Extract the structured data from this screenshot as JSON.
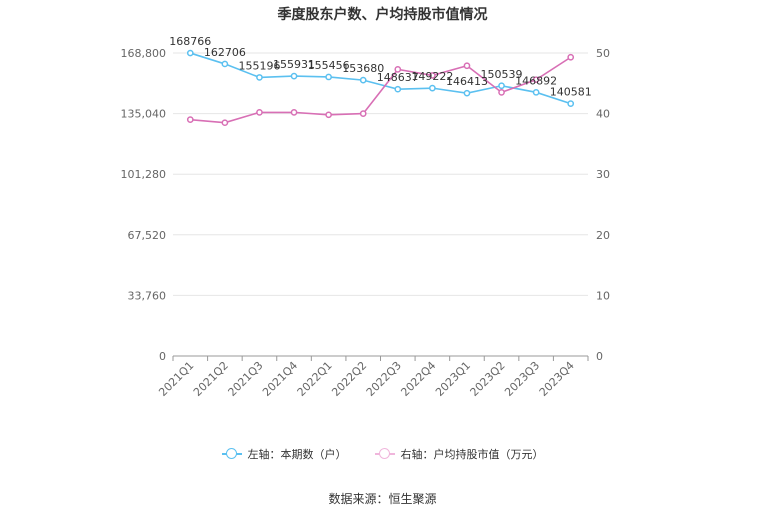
{
  "chart_data": {
    "type": "line",
    "title": "季度股东户数、户均持股市值情况",
    "categories": [
      "2021Q1",
      "2021Q2",
      "2021Q3",
      "2021Q4",
      "2022Q1",
      "2022Q2",
      "2022Q3",
      "2022Q4",
      "2023Q1",
      "2023Q2",
      "2023Q3",
      "2023Q4"
    ],
    "series": [
      {
        "name": "左轴：本期数（户）",
        "axis": "left",
        "color": "#5bc0f0",
        "values": [
          168766,
          162706,
          155196,
          155931,
          155456,
          153680,
          148637,
          149222,
          146413,
          150539,
          146892,
          140581
        ],
        "data_labels": [
          "168766",
          "162706",
          "155196",
          "155931",
          "155456",
          "153680",
          "148637",
          "149222",
          "146413",
          "150539",
          "146892",
          "140581"
        ]
      },
      {
        "name": "右轴：户均持股市值（万元）",
        "axis": "right",
        "color": "#d86fb5",
        "values": [
          39.0,
          38.5,
          40.2,
          40.2,
          39.8,
          40.0,
          47.3,
          46.3,
          47.9,
          43.5,
          45.6,
          49.3
        ]
      }
    ],
    "left_axis": {
      "ylim": [
        0,
        168800
      ],
      "ticks": [
        "0",
        "33,760",
        "67,520",
        "101,280",
        "135,040",
        "168,800"
      ]
    },
    "right_axis": {
      "ylim": [
        0,
        50
      ],
      "ticks": [
        "0",
        "10",
        "20",
        "30",
        "40",
        "50"
      ]
    },
    "grid": true,
    "legend_position": "bottom"
  },
  "source": "数据来源：恒生聚源"
}
